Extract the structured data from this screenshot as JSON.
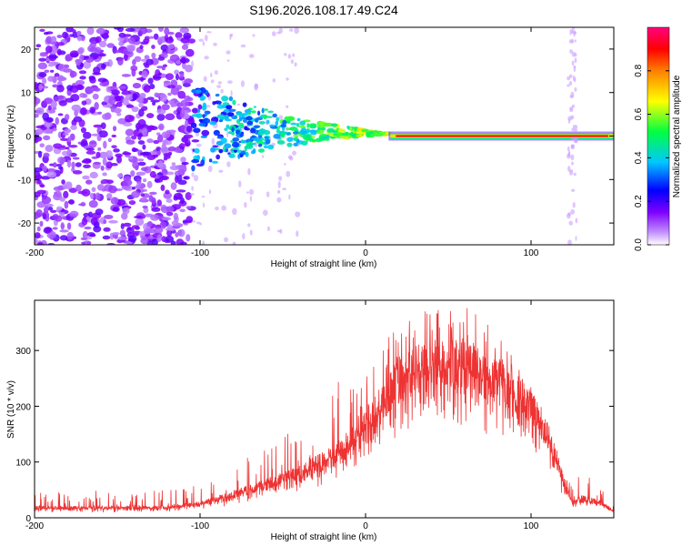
{
  "title": "S196.2026.108.17.49.C24",
  "chart_data": [
    {
      "type": "heatmap",
      "name": "spectrogram",
      "xlabel": "Height of straight line (km)",
      "ylabel": "Frequency (Hz)",
      "xlim": [
        -200,
        150
      ],
      "ylim": [
        -25,
        25
      ],
      "xticks": [
        -200,
        -100,
        0,
        100
      ],
      "yticks": [
        -20,
        -10,
        0,
        10,
        20
      ],
      "colorbar": {
        "label": "Normalized spectral amplitude",
        "range": [
          0,
          1
        ],
        "ticks": [
          0.0,
          0.2,
          0.4,
          0.6,
          0.8
        ],
        "colormap": [
          "#ffffff",
          "#7f00ff",
          "#0000ff",
          "#00ffff",
          "#00ff00",
          "#ffff00",
          "#ff8000",
          "#ff0000",
          "#ff0080"
        ]
      },
      "features": {
        "noise_region_km": [
          -200,
          -105
        ],
        "scatter_region_km": [
          -105,
          15
        ],
        "steady_line_km": [
          15,
          150
        ],
        "steady_line_freq_hz": 0,
        "steady_line_amplitude": 0.8,
        "faint_streak_km": 125
      }
    },
    {
      "type": "line",
      "name": "snr",
      "xlabel": "Height of straight line (km)",
      "ylabel": "SNR (10 * v/v)",
      "xlim": [
        -200,
        150
      ],
      "ylim": [
        0,
        390
      ],
      "xticks": [
        -200,
        -100,
        0,
        100
      ],
      "yticks": [
        0,
        100,
        200,
        300
      ],
      "color": "#ee3333",
      "envelope": {
        "x": [
          -200,
          -150,
          -120,
          -100,
          -80,
          -60,
          -40,
          -20,
          -10,
          0,
          10,
          20,
          30,
          40,
          50,
          60,
          70,
          80,
          90,
          100,
          110,
          115,
          120,
          125,
          130,
          140,
          150
        ],
        "base": [
          18,
          18,
          19,
          25,
          42,
          60,
          80,
          110,
          135,
          170,
          210,
          245,
          265,
          272,
          272,
          268,
          258,
          245,
          228,
          200,
          150,
          110,
          60,
          28,
          35,
          30,
          12
        ],
        "peak": [
          45,
          50,
          52,
          60,
          100,
          130,
          170,
          240,
          260,
          280,
          320,
          340,
          370,
          380,
          385,
          380,
          360,
          330,
          300,
          240,
          160,
          120,
          70,
          70,
          85,
          60,
          30
        ]
      }
    }
  ]
}
